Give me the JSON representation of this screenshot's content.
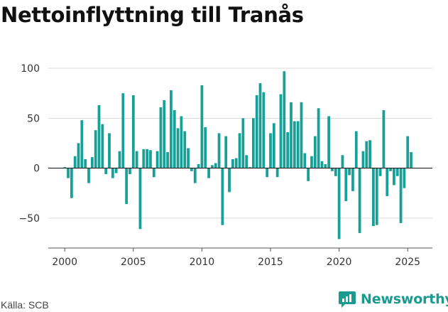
{
  "chart_data": {
    "type": "bar",
    "title": "Nettoinflyttning till Tranås",
    "bar_color": "#17a097",
    "ylim": [
      -80,
      110
    ],
    "xlim": [
      1998.8,
      2026.8
    ],
    "y_ticks": [
      100,
      50,
      0,
      -50
    ],
    "y_tick_labels": [
      "100",
      "50",
      "0",
      "−50"
    ],
    "x_ticks": [
      2000,
      2005,
      2010,
      2015,
      2020,
      2025
    ],
    "x_tick_labels": [
      "2000",
      "2005",
      "2010",
      "2015",
      "2020",
      "2025"
    ],
    "grid": true,
    "legend": "none",
    "x": [
      2000.0,
      2000.25,
      2000.5,
      2000.75,
      2001.0,
      2001.25,
      2001.5,
      2001.75,
      2002.0,
      2002.25,
      2002.5,
      2002.75,
      2003.0,
      2003.25,
      2003.5,
      2003.75,
      2004.0,
      2004.25,
      2004.5,
      2004.75,
      2005.0,
      2005.25,
      2005.5,
      2005.75,
      2006.0,
      2006.25,
      2006.5,
      2006.75,
      2007.0,
      2007.25,
      2007.5,
      2007.75,
      2008.0,
      2008.25,
      2008.5,
      2008.75,
      2009.0,
      2009.25,
      2009.5,
      2009.75,
      2010.0,
      2010.25,
      2010.5,
      2010.75,
      2011.0,
      2011.25,
      2011.5,
      2011.75,
      2012.0,
      2012.25,
      2012.5,
      2012.75,
      2013.0,
      2013.25,
      2013.5,
      2013.75,
      2014.0,
      2014.25,
      2014.5,
      2014.75,
      2015.0,
      2015.25,
      2015.5,
      2015.75,
      2016.0,
      2016.25,
      2016.5,
      2016.75,
      2017.0,
      2017.25,
      2017.5,
      2017.75,
      2018.0,
      2018.25,
      2018.5,
      2018.75,
      2019.0,
      2019.25,
      2019.5,
      2019.75,
      2020.0,
      2020.25,
      2020.5,
      2020.75,
      2021.0,
      2021.25,
      2021.5,
      2021.75,
      2022.0,
      2022.25,
      2022.5,
      2022.75,
      2023.0,
      2023.25,
      2023.5,
      2023.75,
      2024.0,
      2024.25,
      2024.5,
      2024.75,
      2025.0,
      2025.25
    ],
    "values": [
      1,
      -10,
      -30,
      12,
      25,
      48,
      9,
      -15,
      11,
      38,
      63,
      44,
      -6,
      35,
      -10,
      -5,
      17,
      75,
      -36,
      -6,
      73,
      17,
      -61,
      19,
      19,
      18,
      -9,
      17,
      61,
      68,
      16,
      78,
      58,
      40,
      52,
      37,
      20,
      -3,
      -15,
      4,
      83,
      41,
      -10,
      3,
      5,
      35,
      -57,
      32,
      -24,
      9,
      10,
      35,
      50,
      13,
      1,
      50,
      73,
      85,
      76,
      -9,
      35,
      45,
      -9,
      74,
      97,
      36,
      66,
      47,
      47,
      66,
      15,
      -13,
      12,
      32,
      60,
      7,
      4,
      52,
      -3,
      -8,
      -71,
      13,
      -33,
      -7,
      -23,
      37,
      -65,
      17,
      27,
      28,
      -58,
      -57,
      -8,
      58,
      -28,
      -3,
      -17,
      -8,
      -55,
      -20,
      32,
      16
    ]
  },
  "source": "Källa: SCB",
  "brand": {
    "name": "Newsworthy",
    "icon": "newsworthy-logo-icon",
    "color": "#1a9b8f"
  }
}
